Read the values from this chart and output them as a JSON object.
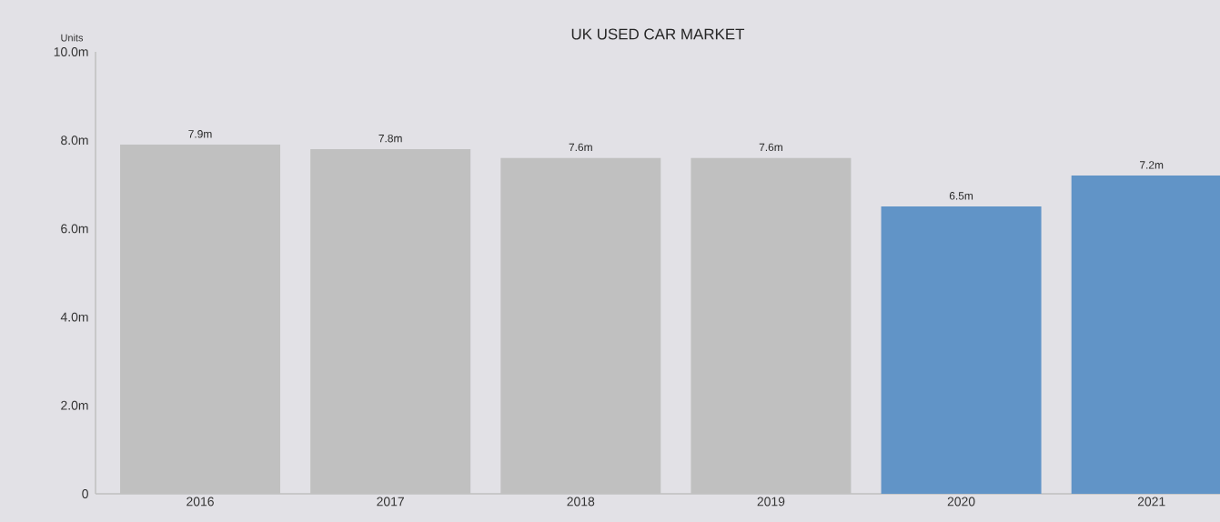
{
  "chart_data": {
    "type": "bar",
    "title": "UK USED CAR MARKET",
    "ylabel": "Units",
    "categories": [
      "2016",
      "2017",
      "2018",
      "2019",
      "2020",
      "2021"
    ],
    "values": [
      7.9,
      7.8,
      7.6,
      7.6,
      6.5,
      7.2
    ],
    "value_labels": [
      "7.9m",
      "7.8m",
      "7.6m",
      "7.6m",
      "6.5m",
      "7.2m"
    ],
    "colors": [
      "#c0c0c0",
      "#c0c0c0",
      "#c0c0c0",
      "#c0c0c0",
      "#6194c7",
      "#6194c7"
    ],
    "ylim": [
      0,
      10
    ],
    "yticks": [
      0,
      {
        "value": 2,
        "label": "2.0m"
      },
      {
        "value": 4,
        "label": "4.0m"
      },
      {
        "value": 6,
        "label": "6.0m"
      },
      {
        "value": 8,
        "label": "8.0m"
      },
      {
        "value": 10,
        "label": "10.0m"
      }
    ],
    "grid": false
  }
}
